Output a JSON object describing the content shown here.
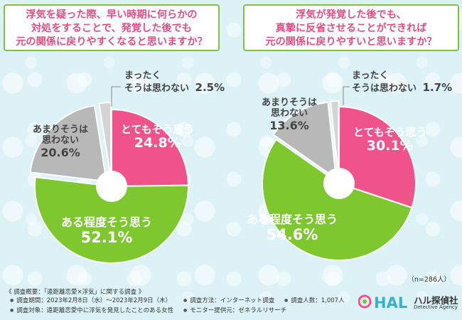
{
  "questions": {
    "q1": [
      "浮気を疑った際、早い時期に何らかの",
      "対処をすることで、発覚した後でも",
      "元の関係に戻りやすくなると思いますか？"
    ],
    "q2": [
      "浮気が発覚した後でも、",
      "真摯に反省させることができれば",
      "元の関係に戻りやすいと思いますか？"
    ]
  },
  "chart_data": [
    {
      "type": "pie",
      "title": "浮気を疑った際、早い時期に何らかの対処をすることで、発覚した後でも元の関係に戻りやすくなると思いますか？",
      "categories": [
        "とてもそう思う",
        "ある程度そう思う",
        "あまりそうは思わない",
        "まったくそうは思わない"
      ],
      "values": [
        24.8,
        52.1,
        20.6,
        2.5
      ],
      "labels": [
        "24.8%",
        "52.1%",
        "20.6%",
        "2.5%"
      ],
      "colors": [
        "#f0538a",
        "#7fc72f",
        "#b8b8b8",
        "#d4d4d4"
      ]
    },
    {
      "type": "pie",
      "title": "浮気が発覚した後でも、真摯に反省させることができれば元の関係に戻りやすいと思いますか？",
      "categories": [
        "とてもそう思う",
        "ある程度そう思う",
        "あまりそうは思わない",
        "まったくそうは思わない"
      ],
      "values": [
        30.1,
        54.6,
        13.6,
        1.7
      ],
      "labels": [
        "30.1%",
        "54.6%",
        "13.6%",
        "1.7%"
      ],
      "colors": [
        "#f0538a",
        "#7fc72f",
        "#b8b8b8",
        "#d4d4d4"
      ]
    }
  ],
  "chart_labels": {
    "c1": {
      "strong_yes": "とてもそう思う",
      "strong_yes_val": "24.8%",
      "somewhat_yes": "ある程度そう思う",
      "somewhat_yes_val": "52.1%",
      "somewhat_no": [
        "あまりそうは",
        "思わない"
      ],
      "somewhat_no_val": "20.6%",
      "not_at_all": [
        "まったく",
        "そうは思わない"
      ],
      "not_at_all_val": "2.5%"
    },
    "c2": {
      "strong_yes": "とてもそう思う",
      "strong_yes_val": "30.1%",
      "somewhat_yes": "ある程度そう思う",
      "somewhat_yes_val": "54.6%",
      "somewhat_no": [
        "あまりそうは",
        "思わない"
      ],
      "somewhat_no_val": "13.6%",
      "not_at_all": [
        "まったく",
        "そうは思わない"
      ],
      "not_at_all_val": "1.7%"
    }
  },
  "sample_note": "（n=286人）",
  "footer": {
    "title": "《 調査概要：「遠距離恋愛×浮気」に関する調査 》",
    "period": "調査期間：2023年2月8日（水）～2023年2月9日（木）",
    "target": "調査対象：遠距離恋愛中に浮気を発見したことのある女性",
    "method": "調査方法：インターネット調査",
    "count": "調査人数：1,007人",
    "monitor": "モニター提供元：ゼネラルリサーチ"
  },
  "logo": {
    "mark": "HAL",
    "name": "ハル探偵社",
    "sub": "Detective Agency"
  },
  "colors": {
    "pink": "#f0538a",
    "green": "#7fc72f",
    "gray": "#b8b8b8",
    "light_gray": "#d4d4d4",
    "accent_border": "#7cc43a"
  }
}
